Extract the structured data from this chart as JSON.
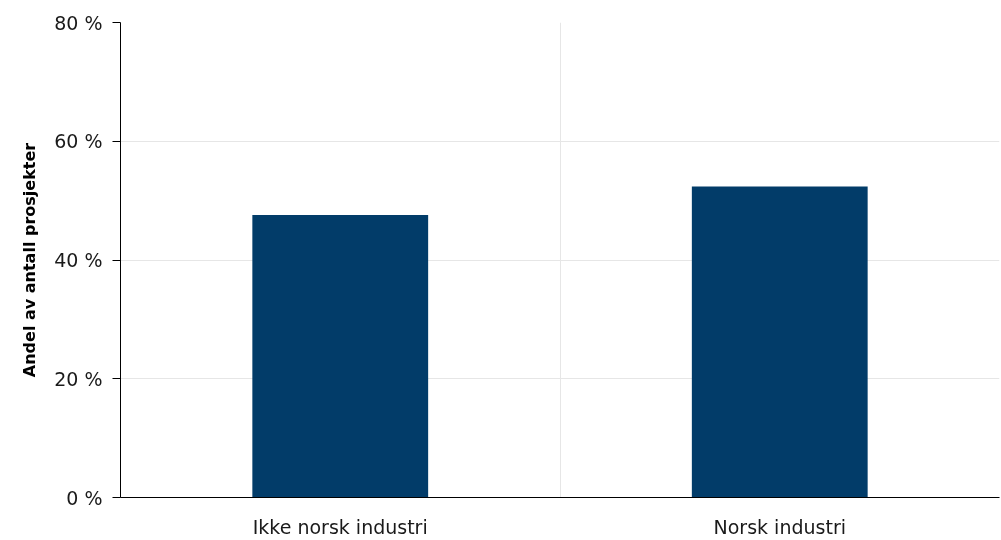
{
  "chart_data": {
    "type": "bar",
    "categories": [
      "Ikke norsk industri",
      "Norsk industri"
    ],
    "values": [
      47.6,
      52.4
    ],
    "color": "#023c69",
    "ylabel": "Andel av antall prosjekter",
    "ylim": [
      0,
      80
    ],
    "yticks": [
      {
        "value": 0,
        "label": "0 %"
      },
      {
        "value": 20,
        "label": "20 %"
      },
      {
        "value": 40,
        "label": "40 %"
      },
      {
        "value": 60,
        "label": "60 %"
      },
      {
        "value": 80,
        "label": "80 %"
      }
    ],
    "grid": true
  }
}
